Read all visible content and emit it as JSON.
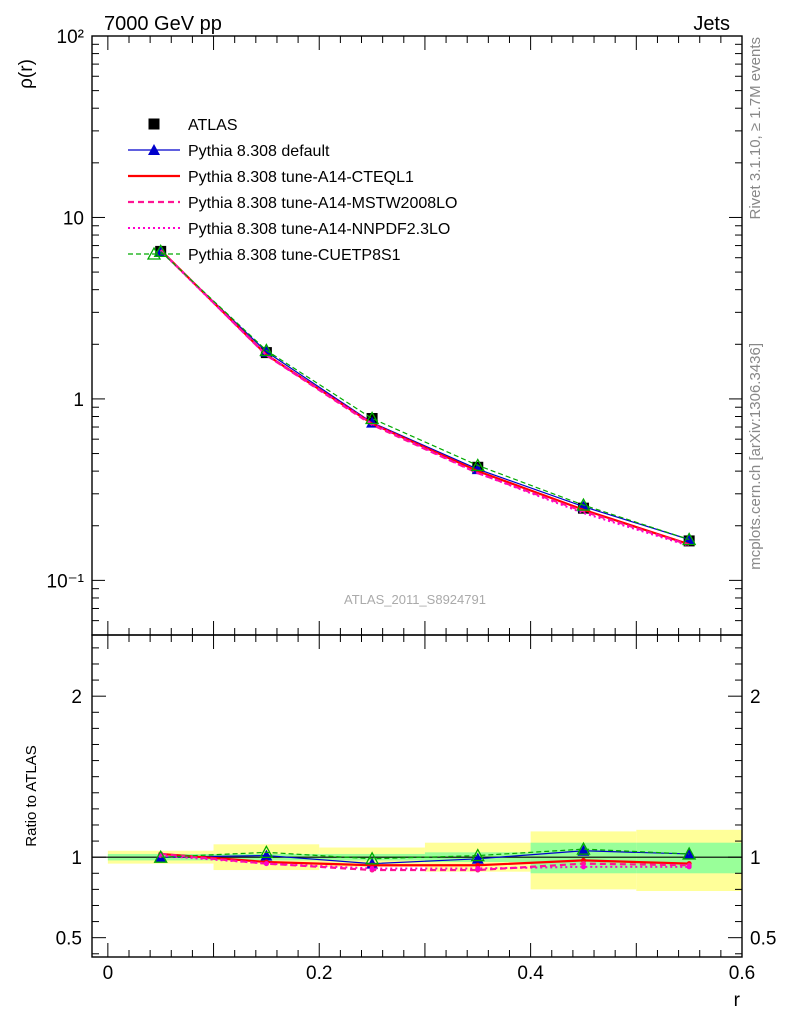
{
  "header": {
    "process": "7000 GeV pp",
    "category": "Jets"
  },
  "side_labels": {
    "rivet": "Rivet 3.1.10, ≥ 1.7M events",
    "source": "mcplots.cern.ch [arXiv:1306.3436]"
  },
  "watermark": "ATLAS_2011_S8924791",
  "colors": {
    "default": "#0000cc",
    "cteql1": "#ff0000",
    "mstw": "#ff1493",
    "nnpdf": "#ff00cc",
    "cuetp8s1": "#00aa00",
    "band_outer": "#ffff99",
    "band_inner": "#99ff99"
  },
  "chart_data": [
    {
      "type": "line",
      "ylabel": "ρ(r)",
      "yscale": "log",
      "ylim": [
        0.05,
        100
      ],
      "xlim": [
        -0.015,
        0.6
      ],
      "y_ticks": [
        "10⁻¹",
        "1",
        "10",
        "10²"
      ],
      "x": [
        0.05,
        0.15,
        0.25,
        0.35,
        0.45,
        0.55
      ],
      "series": [
        {
          "name": "ATLAS",
          "values": [
            6.5,
            1.8,
            0.78,
            0.42,
            0.25,
            0.165
          ]
        },
        {
          "name": "Pythia 8.308 default",
          "values": [
            6.5,
            1.82,
            0.74,
            0.41,
            0.255,
            0.168
          ]
        },
        {
          "name": "Pythia 8.308 tune-A14-CTEQL1",
          "values": [
            6.6,
            1.75,
            0.73,
            0.4,
            0.245,
            0.158
          ]
        },
        {
          "name": "Pythia 8.308 tune-A14-MSTW2008LO",
          "values": [
            6.6,
            1.74,
            0.72,
            0.39,
            0.24,
            0.157
          ]
        },
        {
          "name": "Pythia 8.308 tune-A14-NNPDF2.3LO",
          "values": [
            6.55,
            1.74,
            0.73,
            0.39,
            0.235,
            0.155
          ]
        },
        {
          "name": "Pythia 8.308 tune-CUETP8S1",
          "values": [
            6.5,
            1.85,
            0.78,
            0.43,
            0.26,
            0.168
          ]
        }
      ]
    },
    {
      "type": "line",
      "xlabel": "r",
      "ylabel": "Ratio to ATLAS",
      "ylim": [
        0.38,
        2.38
      ],
      "xlim": [
        -0.015,
        0.6
      ],
      "x_ticks": [
        "0",
        "0.2",
        "0.4",
        "0.6"
      ],
      "y_ticks": [
        "0.5",
        "1",
        "2"
      ],
      "bins": [
        [
          0,
          0.1
        ],
        [
          0.1,
          0.2
        ],
        [
          0.2,
          0.3
        ],
        [
          0.3,
          0.4
        ],
        [
          0.4,
          0.5
        ],
        [
          0.5,
          0.6
        ]
      ],
      "band_outer": [
        [
          0.96,
          1.04
        ],
        [
          0.92,
          1.08
        ],
        [
          0.94,
          1.06
        ],
        [
          0.91,
          1.09
        ],
        [
          0.8,
          1.16
        ],
        [
          0.79,
          1.17
        ]
      ],
      "band_inner": [
        [
          0.98,
          1.02
        ],
        [
          0.98,
          1.02
        ],
        [
          0.98,
          1.02
        ],
        [
          0.97,
          1.03
        ],
        [
          0.9,
          1.09
        ],
        [
          0.9,
          1.09
        ]
      ],
      "x": [
        0.05,
        0.15,
        0.25,
        0.35,
        0.45,
        0.55
      ],
      "series": [
        {
          "name": "Pythia 8.308 default",
          "values": [
            1.0,
            1.01,
            0.96,
            0.99,
            1.04,
            1.02
          ]
        },
        {
          "name": "Pythia 8.308 tune-A14-CTEQL1",
          "values": [
            1.02,
            0.97,
            0.95,
            0.95,
            0.98,
            0.96
          ]
        },
        {
          "name": "Pythia 8.308 tune-A14-MSTW2008LO",
          "values": [
            1.02,
            0.96,
            0.92,
            0.92,
            0.96,
            0.95
          ]
        },
        {
          "name": "Pythia 8.308 tune-A14-NNPDF2.3LO",
          "values": [
            1.01,
            0.96,
            0.93,
            0.93,
            0.94,
            0.94
          ]
        },
        {
          "name": "Pythia 8.308 tune-CUETP8S1",
          "values": [
            1.0,
            1.03,
            0.99,
            1.01,
            1.05,
            1.02
          ]
        }
      ]
    }
  ]
}
